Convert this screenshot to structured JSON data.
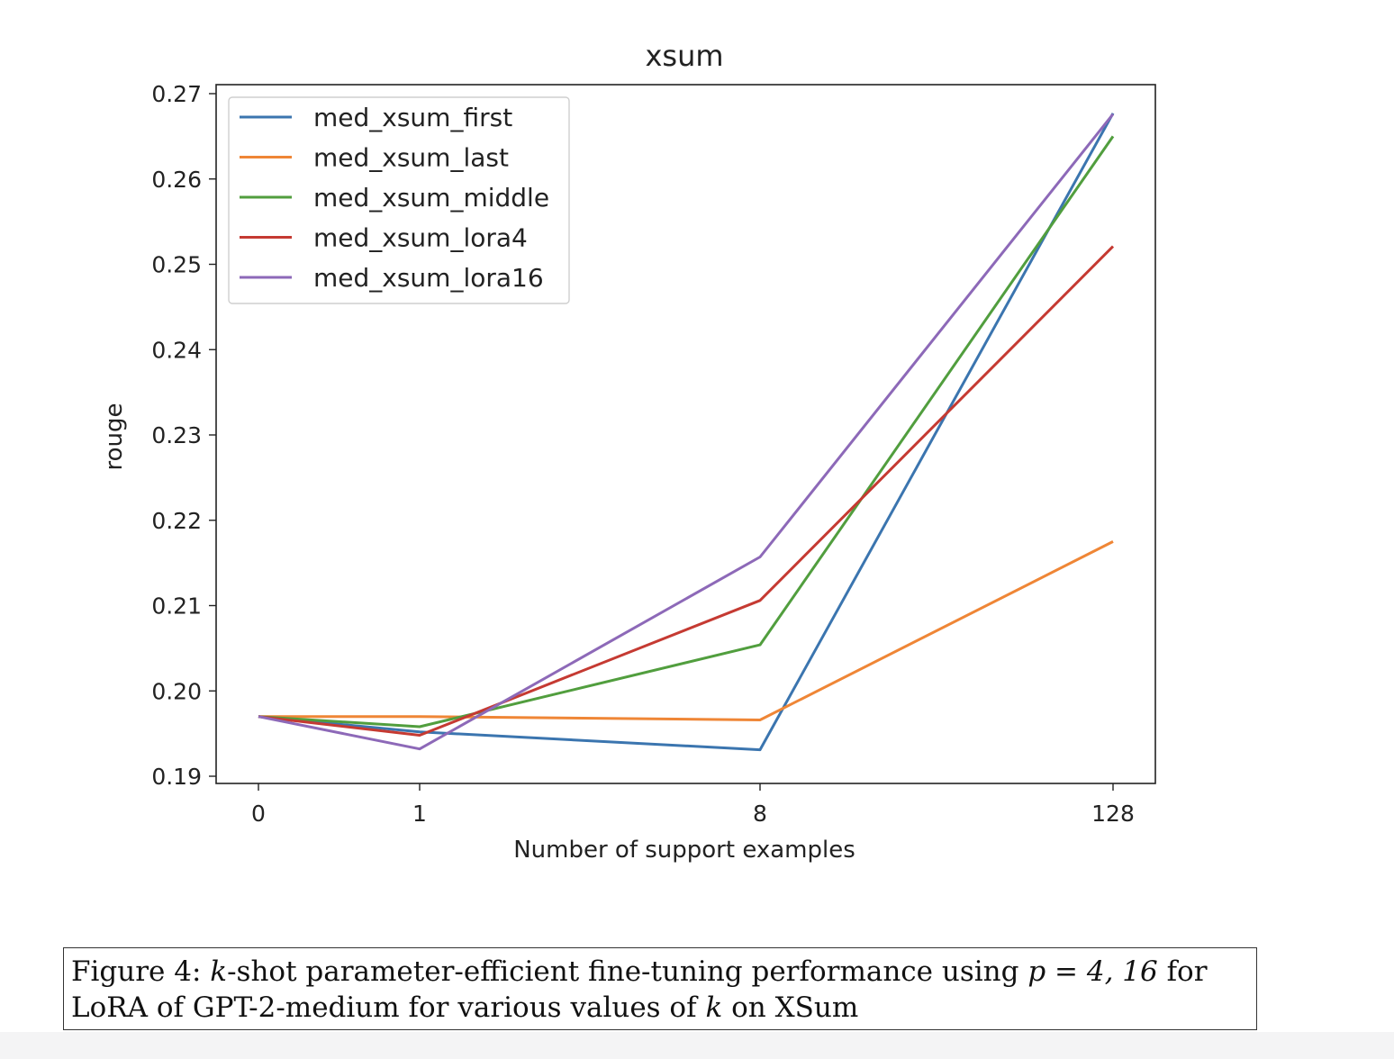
{
  "chart_data": {
    "type": "line",
    "title": "xsum",
    "xlabel": "Number of support examples",
    "ylabel": "rouge",
    "categories": [
      "0",
      "1",
      "8",
      "128"
    ],
    "ylim": [
      0.19,
      0.27
    ],
    "yticks": [
      "0.19",
      "0.20",
      "0.21",
      "0.22",
      "0.23",
      "0.24",
      "0.25",
      "0.26",
      "0.27"
    ],
    "grid": false,
    "legend_position": "upper-left",
    "series": [
      {
        "name": "med_xsum_first",
        "color": "#3b75af",
        "values": [
          0.197,
          0.1952,
          0.1931,
          0.2677
        ]
      },
      {
        "name": "med_xsum_last",
        "color": "#ef8636",
        "values": [
          0.197,
          0.197,
          0.1966,
          0.2175
        ]
      },
      {
        "name": "med_xsum_middle",
        "color": "#519e3e",
        "values": [
          0.197,
          0.1958,
          0.2054,
          0.265
        ]
      },
      {
        "name": "med_xsum_lora4",
        "color": "#c53a32",
        "values": [
          0.197,
          0.1948,
          0.2106,
          0.2521
        ]
      },
      {
        "name": "med_xsum_lora16",
        "color": "#8d69b8",
        "values": [
          0.197,
          0.1932,
          0.2157,
          0.2676
        ]
      }
    ]
  },
  "caption": {
    "label": "Figure 4:",
    "k1": "k",
    "text1": "-shot parameter-efficient fine-tuning performance using",
    "p_eq": "p = 4, 16",
    "text2": "for LoRA of GPT-2-medium for various values of",
    "k2": "k",
    "text3": "on XSum"
  }
}
